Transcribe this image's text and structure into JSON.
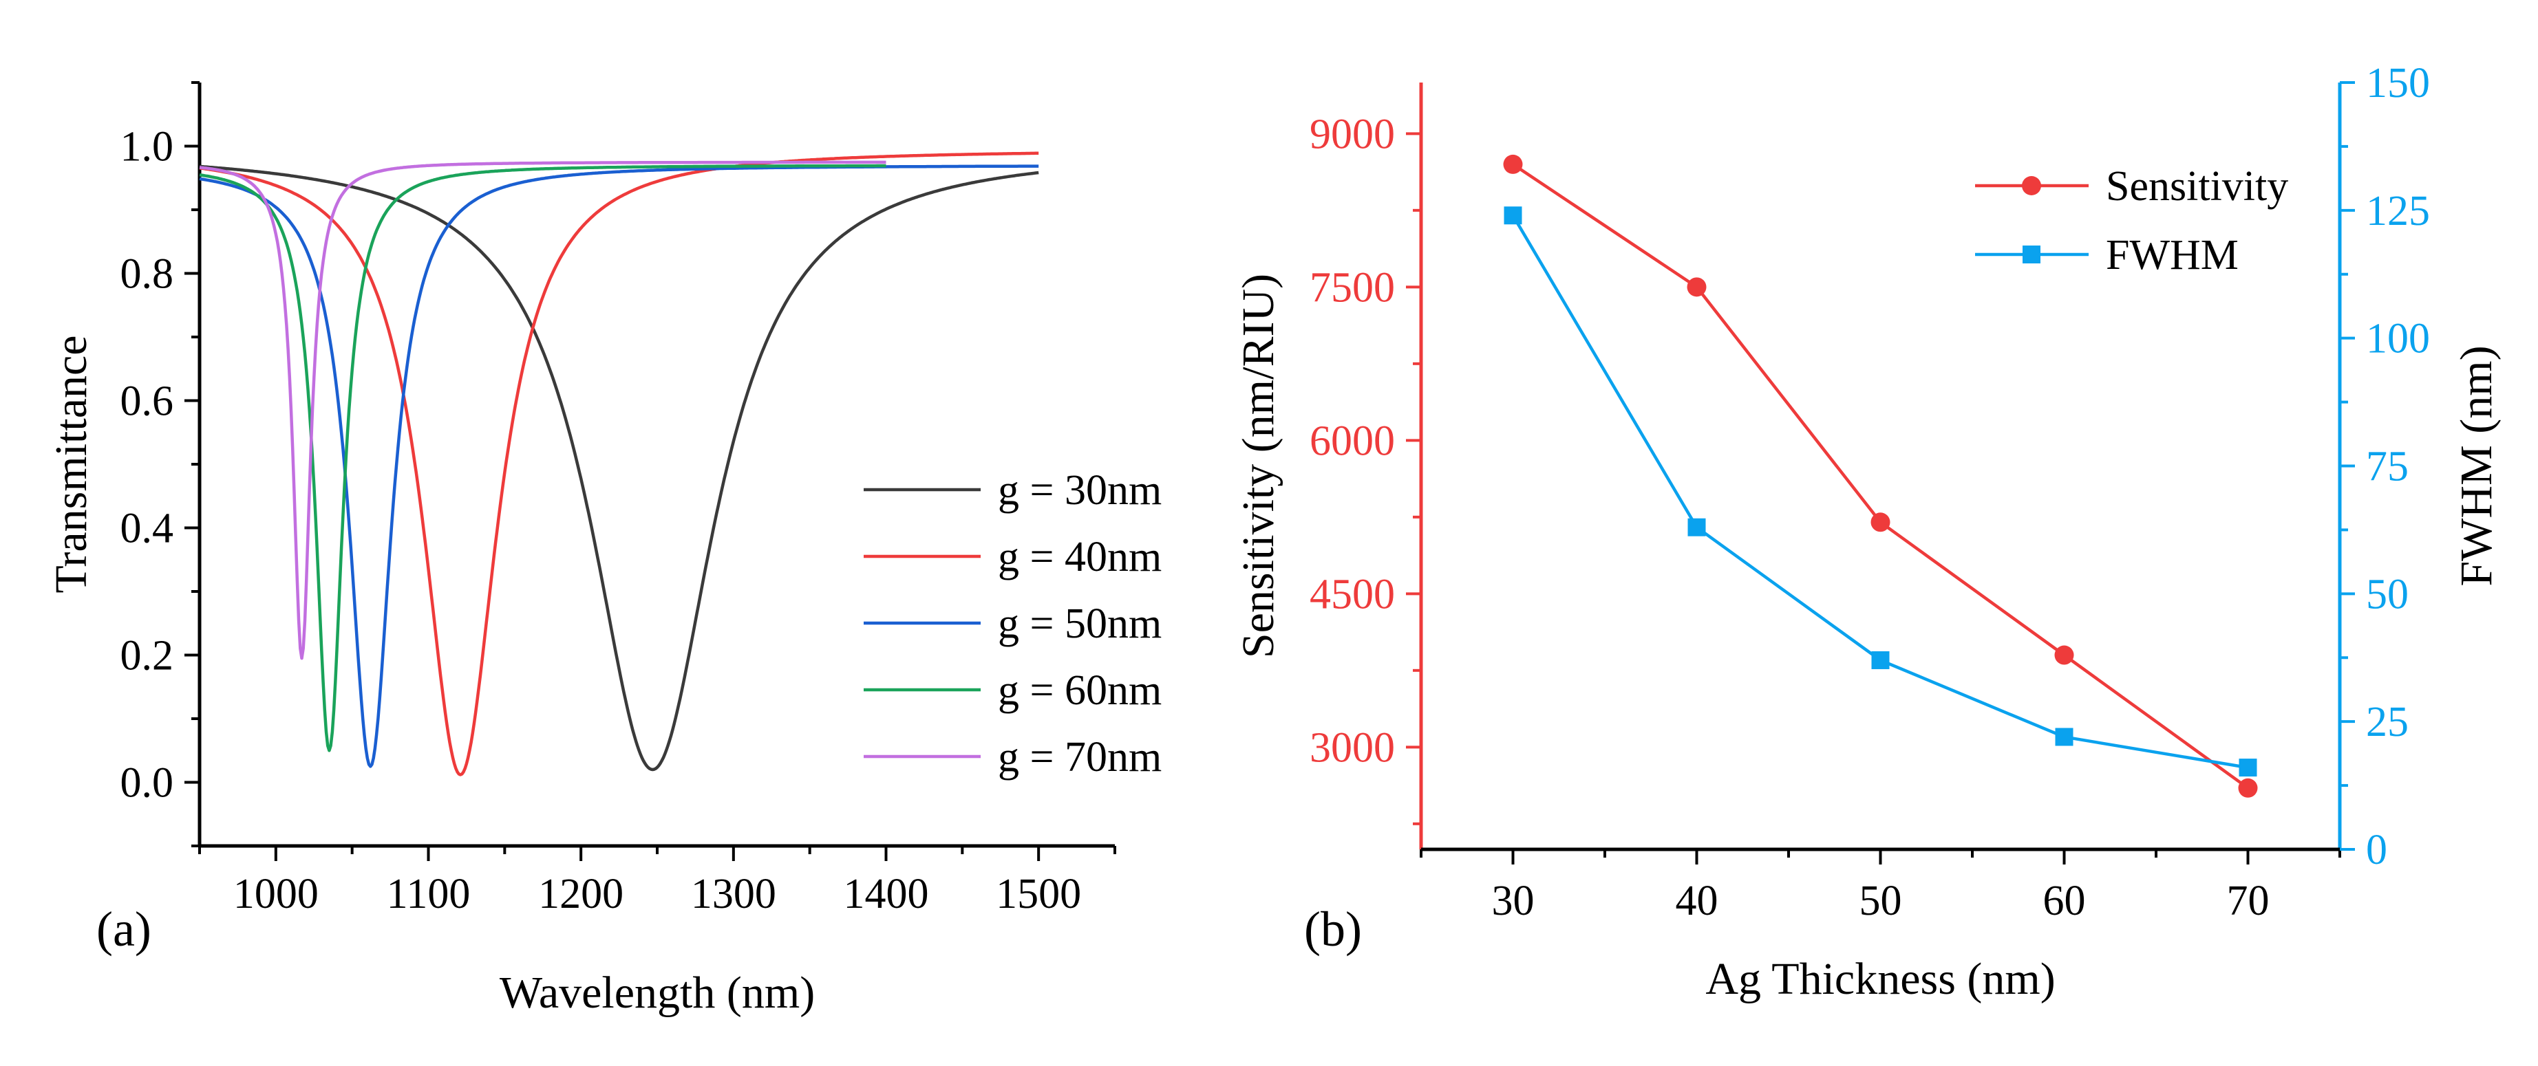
{
  "chart_data": [
    {
      "type": "line",
      "panel_label": "(a)",
      "xlabel": "Wavelength (nm)",
      "ylabel": "Transmittance",
      "xlim": [
        950,
        1550
      ],
      "ylim": [
        -0.1,
        1.1
      ],
      "xticks": [
        "1000",
        "1100",
        "1200",
        "1300",
        "1400",
        "1500"
      ],
      "yticks": [
        "0.0",
        "0.2",
        "0.4",
        "0.6",
        "0.8",
        "1.0"
      ],
      "legend_position": "right",
      "grid": false,
      "series": [
        {
          "name": "g = 30nm",
          "color": "#3a3a3a",
          "x_range": [
            950,
            1500
          ],
          "baseline": 0.995,
          "dip_center": 1247,
          "dip_min": 0.02,
          "dip_width": 50
        },
        {
          "name": "g = 40nm",
          "color": "#ee3b3b",
          "x_range": [
            950,
            1500
          ],
          "baseline": 0.995,
          "dip_center": 1121,
          "dip_min": 0.012,
          "dip_width": 30
        },
        {
          "name": "g = 50nm",
          "color": "#1a5fd1",
          "x_range": [
            950,
            1500
          ],
          "baseline": 0.97,
          "dip_center": 1062,
          "dip_min": 0.025,
          "dip_width": 17
        },
        {
          "name": "g = 60nm",
          "color": "#1aa35a",
          "x_range": [
            950,
            1400
          ],
          "baseline": 0.97,
          "dip_center": 1035,
          "dip_min": 0.05,
          "dip_width": 11
        },
        {
          "name": "g = 70nm",
          "color": "#c26fe0",
          "x_range": [
            950,
            1400
          ],
          "baseline": 0.975,
          "dip_center": 1017,
          "dip_min": 0.195,
          "dip_width": 7
        }
      ]
    },
    {
      "type": "line",
      "panel_label": "(b)",
      "xlabel": "Ag Thickness (nm)",
      "ylabel_left": "Sensitivity (nm/RIU)",
      "ylabel_right": "FWHM (nm)",
      "x": [
        30,
        40,
        50,
        60,
        70
      ],
      "xlim": [
        25,
        75
      ],
      "ylim_left": [
        2000,
        9500
      ],
      "ylim_right": [
        0,
        150
      ],
      "xticks": [
        "30",
        "40",
        "50",
        "60",
        "70"
      ],
      "yticks_left": [
        "3000",
        "4500",
        "6000",
        "7500",
        "9000"
      ],
      "yticks_right": [
        "0",
        "25",
        "50",
        "75",
        "100",
        "125",
        "150"
      ],
      "legend_position": "top-right",
      "grid": false,
      "series": [
        {
          "name": "Sensitivity",
          "axis": "left",
          "marker": "circle",
          "color": "#ee3b3b",
          "values": [
            8700,
            7500,
            5200,
            3900,
            2600
          ]
        },
        {
          "name": "FWHM",
          "axis": "right",
          "marker": "square",
          "color": "#0aa2ee",
          "values": [
            124,
            63,
            37,
            22,
            16
          ]
        }
      ]
    }
  ]
}
